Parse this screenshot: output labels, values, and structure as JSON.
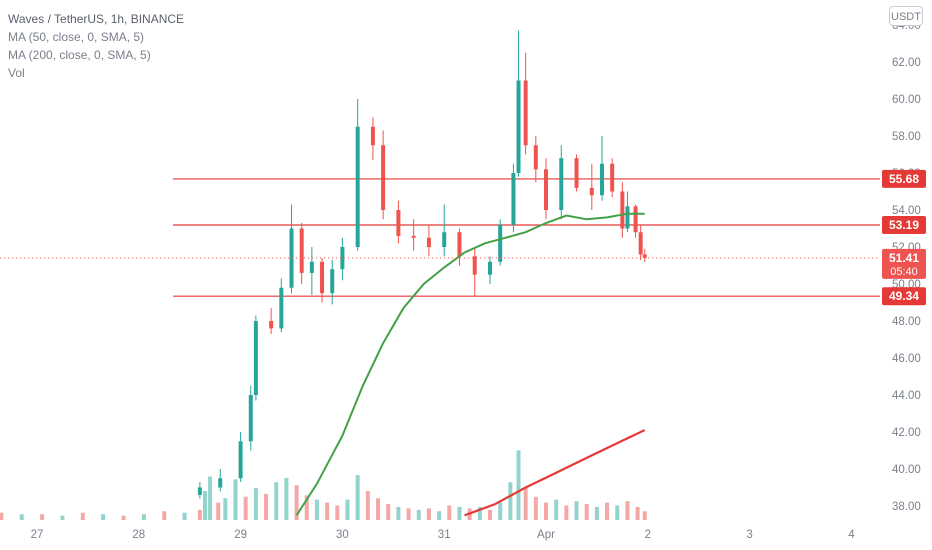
{
  "legend": {
    "symbol": "Waves / TetherUS, 1h, BINANCE",
    "ma50": "MA (50, close, 0, SMA, 5)",
    "ma200": "MA (200, close, 0, SMA, 5)",
    "vol": "Vol"
  },
  "currency": "USDT",
  "colors": {
    "up": "#26a69a",
    "down": "#ef5350",
    "ma50": "#43a047",
    "ma200": "#e53935",
    "hline": "#e53935",
    "axis_text": "#7a7f8c"
  },
  "chart_data": {
    "type": "candlestick",
    "title": "Waves / TetherUS, 1h, BINANCE",
    "y_ticks": [
      38,
      40,
      42,
      44,
      46,
      48,
      50,
      52,
      54,
      56,
      58,
      60,
      62,
      64
    ],
    "y_tick_labels": [
      "38.00",
      "40.00",
      "42.00",
      "44.00",
      "46.00",
      "48.00",
      "50.00",
      "52.00",
      "54.00",
      "56.00",
      "58.00",
      "60.00",
      "62.00",
      "64.00"
    ],
    "x_ticks": [
      {
        "label": "27",
        "day": 27
      },
      {
        "label": "28",
        "day": 28
      },
      {
        "label": "29",
        "day": 29
      },
      {
        "label": "30",
        "day": 30
      },
      {
        "label": "31",
        "day": 31
      },
      {
        "label": "Apr",
        "day": 32
      },
      {
        "label": "2",
        "day": 33
      },
      {
        "label": "3",
        "day": 34
      },
      {
        "label": "4",
        "day": 35
      }
    ],
    "horizontal_lines": [
      {
        "value": 55.68,
        "label": "55.68"
      },
      {
        "value": 53.19,
        "label": "53.19"
      },
      {
        "value": 49.34,
        "label": "49.34"
      }
    ],
    "last_price": {
      "value": 51.41,
      "label": "51.41",
      "countdown": "05:40"
    },
    "candles": [
      {
        "t": 28.6,
        "o": 38.6,
        "h": 39.3,
        "l": 38.4,
        "c": 39.0
      },
      {
        "t": 28.8,
        "o": 39.0,
        "h": 40.0,
        "l": 38.8,
        "c": 39.5
      },
      {
        "t": 29.0,
        "o": 39.5,
        "h": 42.0,
        "l": 39.3,
        "c": 41.5
      },
      {
        "t": 29.1,
        "o": 41.5,
        "h": 44.5,
        "l": 41.0,
        "c": 44.0
      },
      {
        "t": 29.15,
        "o": 44.0,
        "h": 48.3,
        "l": 43.7,
        "c": 48.0
      },
      {
        "t": 29.3,
        "o": 48.0,
        "h": 48.7,
        "l": 47.3,
        "c": 47.6
      },
      {
        "t": 29.4,
        "o": 47.6,
        "h": 50.3,
        "l": 47.4,
        "c": 49.8
      },
      {
        "t": 29.5,
        "o": 49.8,
        "h": 54.3,
        "l": 49.5,
        "c": 53.0
      },
      {
        "t": 29.6,
        "o": 53.0,
        "h": 53.3,
        "l": 50.0,
        "c": 50.6
      },
      {
        "t": 29.7,
        "o": 50.6,
        "h": 52.0,
        "l": 49.4,
        "c": 51.2
      },
      {
        "t": 29.8,
        "o": 51.2,
        "h": 51.4,
        "l": 49.0,
        "c": 49.5
      },
      {
        "t": 29.9,
        "o": 49.5,
        "h": 51.3,
        "l": 48.9,
        "c": 50.8
      },
      {
        "t": 30.0,
        "o": 50.8,
        "h": 52.5,
        "l": 50.2,
        "c": 52.0
      },
      {
        "t": 30.15,
        "o": 52.0,
        "h": 60.0,
        "l": 51.8,
        "c": 58.5
      },
      {
        "t": 30.3,
        "o": 58.5,
        "h": 59.0,
        "l": 56.7,
        "c": 57.5
      },
      {
        "t": 30.4,
        "o": 57.5,
        "h": 58.3,
        "l": 53.5,
        "c": 54.0
      },
      {
        "t": 30.55,
        "o": 54.0,
        "h": 54.5,
        "l": 52.2,
        "c": 52.6
      },
      {
        "t": 30.7,
        "o": 52.6,
        "h": 53.5,
        "l": 51.8,
        "c": 52.5
      },
      {
        "t": 30.85,
        "o": 52.5,
        "h": 53.2,
        "l": 51.5,
        "c": 52.0
      },
      {
        "t": 31.0,
        "o": 52.0,
        "h": 54.3,
        "l": 51.5,
        "c": 52.8
      },
      {
        "t": 31.15,
        "o": 52.8,
        "h": 53.0,
        "l": 51.0,
        "c": 51.5
      },
      {
        "t": 31.3,
        "o": 51.5,
        "h": 52.0,
        "l": 49.3,
        "c": 50.5
      },
      {
        "t": 31.45,
        "o": 50.5,
        "h": 51.5,
        "l": 50.0,
        "c": 51.2
      },
      {
        "t": 31.55,
        "o": 51.2,
        "h": 53.5,
        "l": 51.0,
        "c": 53.2
      },
      {
        "t": 31.68,
        "o": 53.2,
        "h": 56.5,
        "l": 52.8,
        "c": 56.0
      },
      {
        "t": 31.73,
        "o": 56.0,
        "h": 63.7,
        "l": 55.8,
        "c": 61.0
      },
      {
        "t": 31.8,
        "o": 61.0,
        "h": 62.5,
        "l": 57.0,
        "c": 57.5
      },
      {
        "t": 31.9,
        "o": 57.5,
        "h": 58.0,
        "l": 55.5,
        "c": 56.2
      },
      {
        "t": 32.0,
        "o": 56.2,
        "h": 56.8,
        "l": 53.5,
        "c": 54.0
      },
      {
        "t": 32.15,
        "o": 54.0,
        "h": 57.5,
        "l": 53.5,
        "c": 56.8
      },
      {
        "t": 32.3,
        "o": 56.8,
        "h": 57.0,
        "l": 55.0,
        "c": 55.2
      },
      {
        "t": 32.45,
        "o": 55.2,
        "h": 56.5,
        "l": 54.0,
        "c": 54.8
      },
      {
        "t": 32.55,
        "o": 54.8,
        "h": 58.0,
        "l": 54.5,
        "c": 56.5
      },
      {
        "t": 32.65,
        "o": 56.5,
        "h": 56.8,
        "l": 54.7,
        "c": 55.0
      },
      {
        "t": 32.75,
        "o": 55.0,
        "h": 55.5,
        "l": 52.5,
        "c": 53.0
      },
      {
        "t": 32.8,
        "o": 53.0,
        "h": 55.0,
        "l": 52.8,
        "c": 54.2
      },
      {
        "t": 32.88,
        "o": 54.2,
        "h": 54.3,
        "l": 52.5,
        "c": 52.8
      },
      {
        "t": 32.93,
        "o": 52.8,
        "h": 53.2,
        "l": 51.3,
        "c": 51.6
      },
      {
        "t": 32.97,
        "o": 51.6,
        "h": 51.9,
        "l": 51.2,
        "c": 51.41
      }
    ],
    "ma50": {
      "name": "MA (50, close, 0, SMA, 5)",
      "points": [
        {
          "t": 29.55,
          "v": 37.5
        },
        {
          "t": 29.75,
          "v": 39.2
        },
        {
          "t": 30.0,
          "v": 41.8
        },
        {
          "t": 30.2,
          "v": 44.5
        },
        {
          "t": 30.4,
          "v": 46.8
        },
        {
          "t": 30.6,
          "v": 48.7
        },
        {
          "t": 30.8,
          "v": 50.0
        },
        {
          "t": 31.0,
          "v": 50.9
        },
        {
          "t": 31.2,
          "v": 51.7
        },
        {
          "t": 31.4,
          "v": 52.2
        },
        {
          "t": 31.6,
          "v": 52.5
        },
        {
          "t": 31.8,
          "v": 52.8
        },
        {
          "t": 32.0,
          "v": 53.3
        },
        {
          "t": 32.2,
          "v": 53.7
        },
        {
          "t": 32.4,
          "v": 53.5
        },
        {
          "t": 32.6,
          "v": 53.6
        },
        {
          "t": 32.8,
          "v": 53.8
        },
        {
          "t": 32.97,
          "v": 53.8
        }
      ]
    },
    "ma200": {
      "name": "MA (200, close, 0, SMA, 5)",
      "points": [
        {
          "t": 31.2,
          "v": 37.5
        },
        {
          "t": 31.5,
          "v": 38.1
        },
        {
          "t": 31.8,
          "v": 39.0
        },
        {
          "t": 32.1,
          "v": 39.8
        },
        {
          "t": 32.4,
          "v": 40.6
        },
        {
          "t": 32.7,
          "v": 41.4
        },
        {
          "t": 32.97,
          "v": 42.1
        }
      ]
    },
    "volume": {
      "name": "Vol",
      "max": 100,
      "bars": [
        {
          "t": 26.05,
          "v": 3,
          "up": true
        },
        {
          "t": 26.25,
          "v": 4,
          "up": false
        },
        {
          "t": 26.45,
          "v": 3,
          "up": true
        },
        {
          "t": 26.65,
          "v": 5,
          "up": false
        },
        {
          "t": 26.85,
          "v": 4,
          "up": true
        },
        {
          "t": 27.05,
          "v": 4,
          "up": false
        },
        {
          "t": 27.25,
          "v": 3,
          "up": true
        },
        {
          "t": 27.45,
          "v": 5,
          "up": false
        },
        {
          "t": 27.65,
          "v": 4,
          "up": true
        },
        {
          "t": 27.85,
          "v": 3,
          "up": false
        },
        {
          "t": 28.05,
          "v": 4,
          "up": true
        },
        {
          "t": 28.25,
          "v": 6,
          "up": false
        },
        {
          "t": 28.45,
          "v": 5,
          "up": true
        },
        {
          "t": 28.6,
          "v": 7,
          "up": false
        },
        {
          "t": 28.65,
          "v": 20,
          "up": true
        },
        {
          "t": 28.7,
          "v": 30,
          "up": true
        },
        {
          "t": 28.78,
          "v": 12,
          "up": false
        },
        {
          "t": 28.85,
          "v": 15,
          "up": true
        },
        {
          "t": 28.95,
          "v": 28,
          "up": true
        },
        {
          "t": 29.05,
          "v": 16,
          "up": false
        },
        {
          "t": 29.15,
          "v": 22,
          "up": true
        },
        {
          "t": 29.25,
          "v": 18,
          "up": false
        },
        {
          "t": 29.35,
          "v": 26,
          "up": true
        },
        {
          "t": 29.45,
          "v": 29,
          "up": true
        },
        {
          "t": 29.55,
          "v": 24,
          "up": false
        },
        {
          "t": 29.65,
          "v": 17,
          "up": false
        },
        {
          "t": 29.75,
          "v": 14,
          "up": true
        },
        {
          "t": 29.85,
          "v": 12,
          "up": false
        },
        {
          "t": 29.95,
          "v": 10,
          "up": false
        },
        {
          "t": 30.05,
          "v": 14,
          "up": true
        },
        {
          "t": 30.15,
          "v": 31,
          "up": true
        },
        {
          "t": 30.25,
          "v": 20,
          "up": false
        },
        {
          "t": 30.35,
          "v": 15,
          "up": false
        },
        {
          "t": 30.45,
          "v": 11,
          "up": false
        },
        {
          "t": 30.55,
          "v": 9,
          "up": true
        },
        {
          "t": 30.65,
          "v": 8,
          "up": false
        },
        {
          "t": 30.75,
          "v": 7,
          "up": true
        },
        {
          "t": 30.85,
          "v": 8,
          "up": false
        },
        {
          "t": 30.95,
          "v": 6,
          "up": true
        },
        {
          "t": 31.05,
          "v": 10,
          "up": false
        },
        {
          "t": 31.15,
          "v": 9,
          "up": true
        },
        {
          "t": 31.25,
          "v": 8,
          "up": false
        },
        {
          "t": 31.35,
          "v": 9,
          "up": true
        },
        {
          "t": 31.45,
          "v": 7,
          "up": false
        },
        {
          "t": 31.55,
          "v": 12,
          "up": true
        },
        {
          "t": 31.65,
          "v": 26,
          "up": true
        },
        {
          "t": 31.73,
          "v": 48,
          "up": true
        },
        {
          "t": 31.8,
          "v": 22,
          "up": false
        },
        {
          "t": 31.9,
          "v": 16,
          "up": false
        },
        {
          "t": 32.0,
          "v": 12,
          "up": false
        },
        {
          "t": 32.1,
          "v": 14,
          "up": true
        },
        {
          "t": 32.2,
          "v": 10,
          "up": false
        },
        {
          "t": 32.3,
          "v": 13,
          "up": true
        },
        {
          "t": 32.4,
          "v": 11,
          "up": false
        },
        {
          "t": 32.5,
          "v": 9,
          "up": true
        },
        {
          "t": 32.6,
          "v": 12,
          "up": false
        },
        {
          "t": 32.7,
          "v": 10,
          "up": true
        },
        {
          "t": 32.8,
          "v": 13,
          "up": false
        },
        {
          "t": 32.9,
          "v": 9,
          "up": false
        },
        {
          "t": 32.97,
          "v": 6,
          "up": false
        }
      ]
    }
  }
}
